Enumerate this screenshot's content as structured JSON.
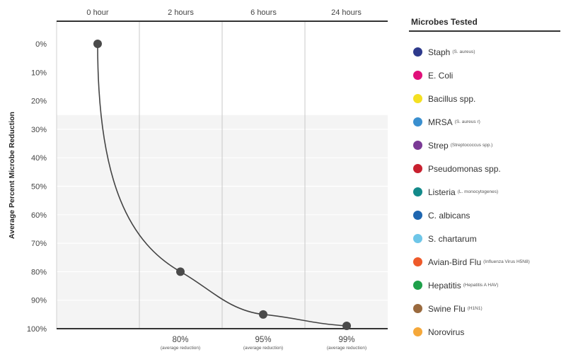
{
  "chart_data": {
    "type": "line",
    "ylabel": "Average Percent Microbe Reduction",
    "x": [
      "0 hour",
      "2 hours",
      "6 hours",
      "24 hours"
    ],
    "y_ticks": [
      "0%",
      "10%",
      "20%",
      "30%",
      "40%",
      "50%",
      "60%",
      "70%",
      "80%",
      "90%",
      "100%"
    ],
    "ylim": [
      0,
      100
    ],
    "y_inverted": true,
    "series": [
      {
        "values": [
          0,
          80,
          95,
          99
        ]
      }
    ],
    "point_labels": [
      {
        "value": "80%",
        "note": "(average reduction)"
      },
      {
        "value": "95%",
        "note": "(average reduction)"
      },
      {
        "value": "99%",
        "note": "(average reduction)"
      }
    ],
    "grid": true,
    "legend_placement": "right"
  },
  "legend": {
    "title": "Microbes Tested",
    "items": [
      {
        "name": "Staph",
        "sub": "(S. aureus)",
        "color": "#2e3a8c"
      },
      {
        "name": "E. Coli",
        "sub": "",
        "color": "#e0107a"
      },
      {
        "name": "Bacillus spp.",
        "sub": "",
        "color": "#f4e022"
      },
      {
        "name": "MRSA",
        "sub": "(S. aureus r)",
        "color": "#3a8fcf"
      },
      {
        "name": "Strep",
        "sub": "(Streptococcus spp.)",
        "color": "#7b3a96"
      },
      {
        "name": "Pseudomonas spp.",
        "sub": "",
        "color": "#c8202f"
      },
      {
        "name": "Listeria",
        "sub": "(L. monocytogenes)",
        "color": "#138a8a"
      },
      {
        "name": "C. albicans",
        "sub": "",
        "color": "#1e66b0"
      },
      {
        "name": "S. chartarum",
        "sub": "",
        "color": "#6ec6e8"
      },
      {
        "name": "Avian-Bird Flu",
        "sub": "(Influenza Virus H5N8)",
        "color": "#ee5a2a"
      },
      {
        "name": "Hepatitis",
        "sub": "(Hepatitis A HAV)",
        "color": "#1ea04a"
      },
      {
        "name": "Swine Flu",
        "sub": "(H1N1)",
        "color": "#9a6a3e"
      },
      {
        "name": "Norovirus",
        "sub": "",
        "color": "#f5a83a"
      }
    ]
  }
}
